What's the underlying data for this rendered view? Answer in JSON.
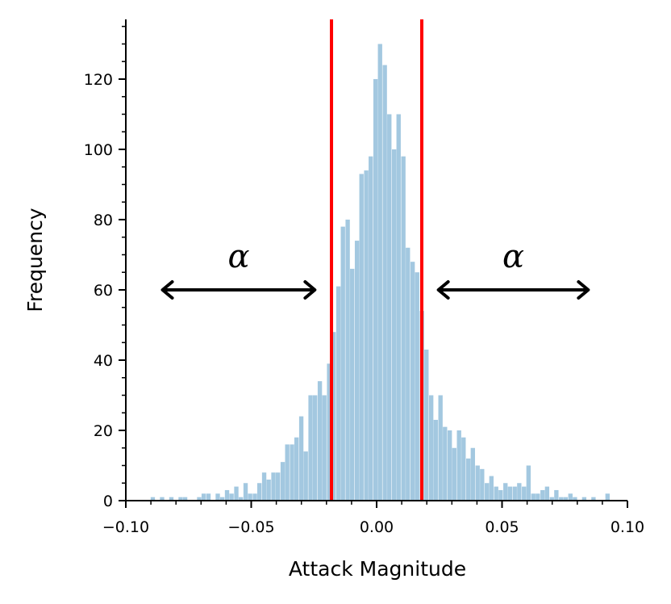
{
  "chart_data": {
    "type": "bar",
    "title": "",
    "xlabel": "Attack Magnitude",
    "ylabel": "Frequency",
    "xlim": [
      -0.1,
      0.1
    ],
    "ylim": [
      0,
      137
    ],
    "bin_width": 0.00185,
    "x_ticks": [
      -0.1,
      -0.05,
      0.0,
      0.05,
      0.1
    ],
    "x_tick_labels": [
      "−0.10",
      "−0.05",
      "0.00",
      "0.05",
      "0.10"
    ],
    "y_ticks": [
      0,
      20,
      40,
      60,
      80,
      100,
      120
    ],
    "y_tick_labels": [
      "0",
      "20",
      "40",
      "60",
      "80",
      "100",
      "120"
    ],
    "bar_color": "#a3c8e0",
    "threshold_color": "#ff0000",
    "thresholds": [
      -0.018,
      0.018
    ],
    "bins": [
      {
        "x": -0.0901,
        "y": 1
      },
      {
        "x": -0.0883,
        "y": 0
      },
      {
        "x": -0.0864,
        "y": 1
      },
      {
        "x": -0.0846,
        "y": 0
      },
      {
        "x": -0.0827,
        "y": 1
      },
      {
        "x": -0.0809,
        "y": 0
      },
      {
        "x": -0.079,
        "y": 1
      },
      {
        "x": -0.0772,
        "y": 1
      },
      {
        "x": -0.0753,
        "y": 0
      },
      {
        "x": -0.0735,
        "y": 0
      },
      {
        "x": -0.0716,
        "y": 1
      },
      {
        "x": -0.0698,
        "y": 2
      },
      {
        "x": -0.0679,
        "y": 2
      },
      {
        "x": -0.0661,
        "y": 0
      },
      {
        "x": -0.0642,
        "y": 2
      },
      {
        "x": -0.0624,
        "y": 1
      },
      {
        "x": -0.0605,
        "y": 3
      },
      {
        "x": -0.0587,
        "y": 2
      },
      {
        "x": -0.0568,
        "y": 4
      },
      {
        "x": -0.055,
        "y": 1
      },
      {
        "x": -0.0531,
        "y": 5
      },
      {
        "x": -0.0513,
        "y": 2
      },
      {
        "x": -0.0494,
        "y": 2
      },
      {
        "x": -0.0476,
        "y": 5
      },
      {
        "x": -0.0457,
        "y": 8
      },
      {
        "x": -0.0439,
        "y": 6
      },
      {
        "x": -0.042,
        "y": 8
      },
      {
        "x": -0.0402,
        "y": 8
      },
      {
        "x": -0.0383,
        "y": 11
      },
      {
        "x": -0.0365,
        "y": 16
      },
      {
        "x": -0.0346,
        "y": 16
      },
      {
        "x": -0.0328,
        "y": 18
      },
      {
        "x": -0.0309,
        "y": 24
      },
      {
        "x": -0.0291,
        "y": 14
      },
      {
        "x": -0.0272,
        "y": 30
      },
      {
        "x": -0.0254,
        "y": 30
      },
      {
        "x": -0.0235,
        "y": 34
      },
      {
        "x": -0.0217,
        "y": 30
      },
      {
        "x": -0.0198,
        "y": 39
      },
      {
        "x": -0.018,
        "y": 48
      },
      {
        "x": -0.0161,
        "y": 61
      },
      {
        "x": -0.0143,
        "y": 78
      },
      {
        "x": -0.0124,
        "y": 80
      },
      {
        "x": -0.0106,
        "y": 66
      },
      {
        "x": -0.0087,
        "y": 74
      },
      {
        "x": -0.0069,
        "y": 93
      },
      {
        "x": -0.005,
        "y": 94
      },
      {
        "x": -0.0032,
        "y": 98
      },
      {
        "x": -0.0013,
        "y": 120
      },
      {
        "x": 0.0005,
        "y": 130
      },
      {
        "x": 0.0024,
        "y": 124
      },
      {
        "x": 0.0042,
        "y": 110
      },
      {
        "x": 0.0061,
        "y": 100
      },
      {
        "x": 0.0079,
        "y": 110
      },
      {
        "x": 0.0098,
        "y": 98
      },
      {
        "x": 0.0116,
        "y": 72
      },
      {
        "x": 0.0135,
        "y": 68
      },
      {
        "x": 0.0153,
        "y": 65
      },
      {
        "x": 0.0172,
        "y": 54
      },
      {
        "x": 0.019,
        "y": 43
      },
      {
        "x": 0.0209,
        "y": 30
      },
      {
        "x": 0.0227,
        "y": 23
      },
      {
        "x": 0.0246,
        "y": 30
      },
      {
        "x": 0.0264,
        "y": 21
      },
      {
        "x": 0.0283,
        "y": 20
      },
      {
        "x": 0.0301,
        "y": 15
      },
      {
        "x": 0.032,
        "y": 20
      },
      {
        "x": 0.0338,
        "y": 18
      },
      {
        "x": 0.0357,
        "y": 12
      },
      {
        "x": 0.0375,
        "y": 15
      },
      {
        "x": 0.0394,
        "y": 10
      },
      {
        "x": 0.0412,
        "y": 9
      },
      {
        "x": 0.0431,
        "y": 5
      },
      {
        "x": 0.0449,
        "y": 7
      },
      {
        "x": 0.0468,
        "y": 4
      },
      {
        "x": 0.0486,
        "y": 3
      },
      {
        "x": 0.0505,
        "y": 5
      },
      {
        "x": 0.0523,
        "y": 4
      },
      {
        "x": 0.0542,
        "y": 4
      },
      {
        "x": 0.056,
        "y": 5
      },
      {
        "x": 0.0579,
        "y": 4
      },
      {
        "x": 0.0597,
        "y": 10
      },
      {
        "x": 0.0616,
        "y": 2
      },
      {
        "x": 0.0634,
        "y": 2
      },
      {
        "x": 0.0653,
        "y": 3
      },
      {
        "x": 0.0671,
        "y": 4
      },
      {
        "x": 0.069,
        "y": 1
      },
      {
        "x": 0.0708,
        "y": 3
      },
      {
        "x": 0.0727,
        "y": 1
      },
      {
        "x": 0.0745,
        "y": 1
      },
      {
        "x": 0.0764,
        "y": 2
      },
      {
        "x": 0.0782,
        "y": 1
      },
      {
        "x": 0.0801,
        "y": 0
      },
      {
        "x": 0.0819,
        "y": 1
      },
      {
        "x": 0.0838,
        "y": 0
      },
      {
        "x": 0.0856,
        "y": 1
      },
      {
        "x": 0.0875,
        "y": 0
      },
      {
        "x": 0.0893,
        "y": 0
      },
      {
        "x": 0.0912,
        "y": 2
      }
    ],
    "annotations": [
      {
        "text": "α",
        "x_from": -0.086,
        "x_to": -0.024,
        "y": 60
      },
      {
        "text": "α",
        "x_from": 0.024,
        "x_to": 0.085,
        "y": 60
      }
    ]
  }
}
